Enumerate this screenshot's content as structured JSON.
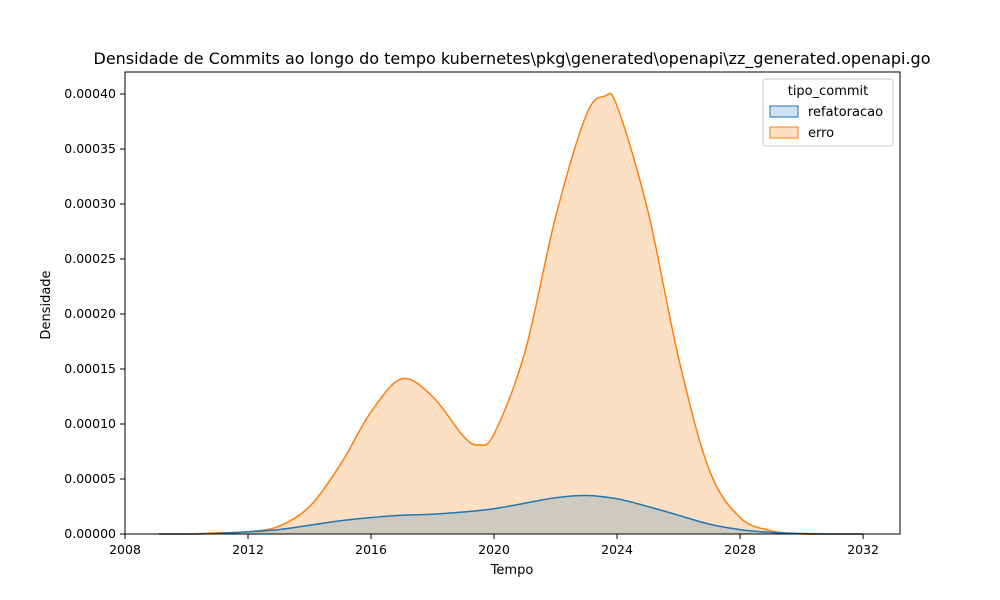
{
  "chart_data": {
    "type": "area",
    "title": "Densidade de Commits ao longo do tempo kubernetes\\pkg\\generated\\openapi\\zz_generated.openapi.go",
    "xlabel": "Tempo",
    "ylabel": "Densidade",
    "xlim": [
      2008,
      2033.2
    ],
    "ylim": [
      0,
      0.00042
    ],
    "x_ticks": [
      2008,
      2012,
      2016,
      2020,
      2024,
      2028,
      2032
    ],
    "y_ticks": [
      0,
      5e-05,
      0.0001,
      0.00015,
      0.0002,
      0.00025,
      0.0003,
      0.00035,
      0.0004
    ],
    "y_tick_labels": [
      "0.00000",
      "0.00005",
      "0.00010",
      "0.00015",
      "0.00020",
      "0.00025",
      "0.00030",
      "0.00035",
      "0.00040"
    ],
    "grid": false,
    "legend": {
      "title": "tipo_commit",
      "position": "top-right"
    },
    "series": [
      {
        "name": "erro",
        "color": "#ff7f0e",
        "fill": "#fddfc3",
        "x": [
          2009.1,
          2010,
          2011,
          2012,
          2013,
          2014,
          2015,
          2016,
          2017,
          2018,
          2019,
          2019.5,
          2020,
          2021,
          2022,
          2023,
          2023.6,
          2024,
          2025,
          2026,
          2027,
          2028,
          2029,
          2030,
          2031,
          2032
        ],
        "y": [
          0,
          0,
          1e-06,
          2e-06,
          7e-06,
          2.5e-05,
          6.3e-05,
          0.000111,
          0.000141,
          0.000125,
          8.9e-05,
          8.1e-05,
          9.1e-05,
          0.000165,
          0.000288,
          0.000381,
          0.000398,
          0.000389,
          0.000294,
          0.00016,
          5.8e-05,
          1.5e-05,
          3e-06,
          0,
          0,
          0
        ]
      },
      {
        "name": "refatoracao",
        "color": "#1f77b4",
        "fill": "#cfcac0",
        "x": [
          2009.1,
          2010,
          2011,
          2012,
          2013,
          2014,
          2015,
          2016,
          2017,
          2018,
          2019,
          2020,
          2021,
          2022,
          2023,
          2024,
          2025,
          2026,
          2027,
          2028,
          2029,
          2030,
          2031,
          2032
        ],
        "y": [
          0,
          0,
          5e-07,
          2e-06,
          4e-06,
          8e-06,
          1.2e-05,
          1.5e-05,
          1.7e-05,
          1.8e-05,
          2e-05,
          2.3e-05,
          2.8e-05,
          3.3e-05,
          3.5e-05,
          3.2e-05,
          2.5e-05,
          1.7e-05,
          9e-06,
          4e-06,
          1.5e-06,
          5e-07,
          0,
          0
        ]
      }
    ]
  }
}
